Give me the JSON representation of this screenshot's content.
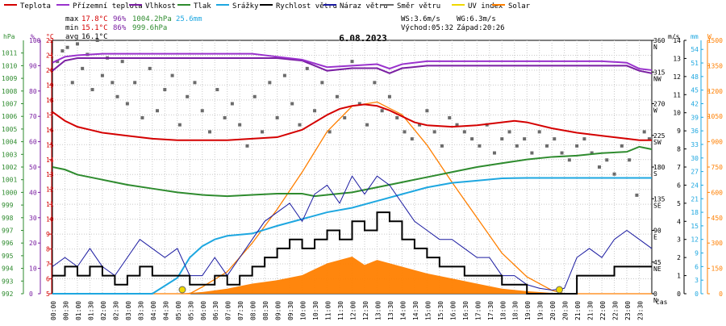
{
  "legend": [
    {
      "label": "Teplota",
      "color": "#d40000"
    },
    {
      "label": "Přízemní teplota",
      "color": "#9a32cd"
    },
    {
      "label": "Vlhkost",
      "color": "#7a1fa2"
    },
    {
      "label": "Tlak",
      "color": "#2e8b2e"
    },
    {
      "label": "Srážky",
      "color": "#1ea7e0"
    },
    {
      "label": "Rychlost větru",
      "color": "#000000"
    },
    {
      "label": "Náraz větru",
      "color": "#1a1aa0"
    },
    {
      "label": "Směr větru",
      "color": "#6b6b6b"
    },
    {
      "label": "UV index",
      "color": "#f0d800"
    },
    {
      "label": "Solar",
      "color": "#ff7f00"
    }
  ],
  "stats": {
    "max_label": "max",
    "max_temp": "17.8°C",
    "max_hum": "96%",
    "max_press": "1004.2hPa",
    "max_rain": "25.6mm",
    "min_label": "min",
    "min_temp": "15.1°C",
    "min_hum": "86%",
    "min_press": "999.6hPa",
    "avg_label": "avg",
    "avg_temp": "16.1°C"
  },
  "wind_info": {
    "ws": "WS:3.6m/s",
    "wg": "WG:6.3m/s",
    "sunrise": "Východ:05:32",
    "sunset": "Západ:20:26"
  },
  "title": "6.08.2023",
  "axis_titles": {
    "press": "hPa",
    "hum": "%",
    "temp": "°C",
    "wind": "m/s",
    "rain": "mm",
    "solar": "W",
    "time": "čas"
  },
  "chart_data": {
    "type": "line",
    "title": "6.08.2023",
    "x_ticks": [
      "00:00",
      "00:30",
      "01:00",
      "01:30",
      "02:00",
      "02:30",
      "03:00",
      "03:30",
      "04:00",
      "04:30",
      "05:00",
      "05:30",
      "06:00",
      "06:30",
      "07:00",
      "07:30",
      "08:00",
      "08:30",
      "09:00",
      "09:30",
      "10:00",
      "10:30",
      "11:00",
      "11:30",
      "12:00",
      "12:30",
      "13:00",
      "13:30",
      "14:00",
      "14:30",
      "15:00",
      "15:30",
      "16:00",
      "16:30",
      "17:00",
      "17:30",
      "18:00",
      "18:30",
      "19:00",
      "19:30",
      "20:00",
      "20:30",
      "21:00",
      "21:30",
      "22:00",
      "22:30",
      "23:00",
      "23:30"
    ],
    "axes": {
      "pressure": {
        "label": "hPa",
        "ylim": [
          992,
          1012
        ],
        "ticks": [
          "992",
          "993",
          "994",
          "995",
          "996",
          "997",
          "998",
          "999",
          "1000",
          "1001",
          "1002",
          "1003",
          "1004",
          "1005",
          "1006",
          "1007",
          "1008",
          "1009",
          "1010",
          "1011"
        ]
      },
      "humidity": {
        "label": "%",
        "ylim": [
          0,
          100
        ],
        "ticks": [
          "0",
          "10",
          "20",
          "30",
          "40",
          "50",
          "60",
          "70",
          "80",
          "90",
          "100"
        ]
      },
      "temperature": {
        "label": "°C",
        "ylim": [
          5,
          22
        ],
        "ticks": [
          "5",
          "6",
          "7",
          "8",
          "9",
          "10",
          "11",
          "12",
          "13",
          "14",
          "15",
          "16",
          "17",
          "18",
          "19",
          "20",
          "21",
          "22"
        ]
      },
      "wind_dir": {
        "ticks": [
          "0\nN",
          "45\nNE",
          "90\nE",
          "135\nSE",
          "180\nS",
          "225\nSW",
          "270\nW",
          "315\nNW",
          "360\nN"
        ],
        "ylim": [
          0,
          360
        ]
      },
      "wind_speed": {
        "label": "m/s",
        "ylim": [
          0,
          14
        ],
        "ticks": [
          "0",
          "1",
          "2",
          "3",
          "4",
          "5",
          "6",
          "7",
          "8",
          "9",
          "10",
          "11",
          "12",
          "13",
          "14"
        ]
      },
      "rain": {
        "label": "mm",
        "ylim": [
          0,
          56
        ],
        "ticks": [
          "0",
          "3",
          "6",
          "9",
          "12",
          "15",
          "18",
          "21",
          "24",
          "27",
          "30",
          "33",
          "36",
          "39",
          "42",
          "45",
          "48",
          "51",
          "54"
        ]
      },
      "solar": {
        "label": "W",
        "ylim": [
          0,
          1500
        ],
        "ticks": [
          "0",
          "150",
          "300",
          "450",
          "600",
          "750",
          "900",
          "1050",
          "1200",
          "1350",
          "1500"
        ]
      }
    },
    "series": [
      {
        "name": "Teplota",
        "axis": "temperature",
        "color": "#d40000",
        "x": [
          0,
          0.5,
          1,
          1.5,
          2,
          3,
          4,
          5,
          6,
          7,
          8,
          9,
          10,
          11,
          11.5,
          12,
          12.5,
          13,
          13.5,
          14,
          14.5,
          15,
          16,
          17,
          18,
          18.5,
          19,
          20,
          21,
          22,
          23,
          23.5,
          24
        ],
        "y": [
          17.2,
          16.6,
          16.2,
          16.0,
          15.8,
          15.6,
          15.4,
          15.3,
          15.3,
          15.3,
          15.4,
          15.5,
          16.0,
          17.0,
          17.4,
          17.6,
          17.7,
          17.6,
          17.3,
          16.9,
          16.5,
          16.3,
          16.2,
          16.3,
          16.5,
          16.6,
          16.5,
          16.1,
          15.8,
          15.6,
          15.4,
          15.3,
          15.3
        ]
      },
      {
        "name": "Přízemní teplota",
        "axis": "temperature",
        "color": "#9a32cd",
        "x": [
          0,
          0.5,
          1,
          2,
          3,
          4,
          5,
          6,
          7,
          8,
          9,
          10,
          11,
          12,
          13,
          13.5,
          14,
          15,
          16,
          17,
          18,
          19,
          20,
          21,
          22,
          23,
          23.5,
          24
        ],
        "y": [
          20.5,
          20.9,
          21.0,
          21.1,
          21.1,
          21.1,
          21.1,
          21.1,
          21.1,
          21.1,
          20.9,
          20.7,
          20.2,
          20.3,
          20.4,
          20.1,
          20.4,
          20.6,
          20.6,
          20.6,
          20.6,
          20.6,
          20.6,
          20.6,
          20.6,
          20.5,
          20.1,
          20.0
        ]
      },
      {
        "name": "Tlak",
        "axis": "pressure",
        "color": "#2e8b2e",
        "x": [
          0,
          0.5,
          1,
          1.5,
          2,
          3,
          4,
          5,
          6,
          7,
          8,
          9,
          10,
          10.5,
          11,
          12,
          13,
          14,
          15,
          16,
          17,
          18,
          19,
          20,
          21,
          22,
          23,
          23.5,
          24
        ],
        "y": [
          1002.0,
          1001.8,
          1001.4,
          1001.2,
          1001.0,
          1000.6,
          1000.3,
          1000.0,
          999.8,
          999.7,
          999.8,
          999.9,
          999.9,
          999.7,
          999.8,
          1000.0,
          1000.4,
          1000.8,
          1001.2,
          1001.6,
          1002.0,
          1002.3,
          1002.6,
          1002.8,
          1002.9,
          1003.1,
          1003.2,
          1003.6,
          1003.4
        ]
      },
      {
        "name": "Vlhkost",
        "axis": "humidity",
        "color": "#7a1fa2",
        "x": [
          0,
          0.5,
          1,
          2,
          3,
          4,
          5,
          6,
          7,
          8,
          9,
          10,
          11,
          12,
          13,
          13.5,
          14,
          15,
          16,
          17,
          18,
          19,
          20,
          21,
          22,
          23,
          23.5,
          24
        ],
        "y": [
          88,
          92,
          93,
          93,
          93,
          93,
          93,
          93,
          93,
          93,
          93,
          92,
          88,
          89,
          89,
          87,
          89,
          90,
          90,
          90,
          90,
          90,
          90,
          90,
          90,
          90,
          88,
          87
        ]
      },
      {
        "name": "Srážky",
        "axis": "rain",
        "color": "#1ea7e0",
        "x": [
          0,
          1,
          2,
          3,
          4,
          5,
          5.5,
          6,
          6.5,
          7,
          8,
          9,
          10,
          11,
          12,
          13,
          14,
          15,
          16,
          17,
          18,
          19,
          20,
          21,
          22,
          23,
          24
        ],
        "y": [
          0,
          0,
          0,
          0,
          0,
          3.5,
          8,
          10.5,
          12,
          12.8,
          13.3,
          15,
          16.5,
          18,
          19,
          20.5,
          22,
          23.5,
          24.5,
          25,
          25.5,
          25.6,
          25.6,
          25.6,
          25.6,
          25.6,
          25.6
        ]
      },
      {
        "name": "Rychlost větru",
        "axis": "wind_speed",
        "color": "#000000",
        "x": [
          0,
          0.5,
          1,
          1.5,
          2,
          2.5,
          3,
          3.5,
          4,
          4.5,
          5,
          5.5,
          6,
          6.5,
          7,
          7.5,
          8,
          8.5,
          9,
          9.5,
          10,
          10.5,
          11,
          11.5,
          12,
          12.5,
          13,
          13.5,
          14,
          14.5,
          15,
          15.5,
          16,
          16.5,
          17,
          17.5,
          18,
          18.5,
          19,
          19.5,
          20,
          20.5,
          21,
          21.5,
          22,
          22.5,
          23,
          23.5,
          24
        ],
        "y": [
          1.0,
          1.5,
          1.0,
          1.5,
          1.0,
          0.5,
          1.0,
          1.5,
          1.0,
          1.0,
          1.0,
          0.5,
          0.5,
          1.0,
          0.5,
          1.0,
          1.5,
          2.0,
          2.5,
          3.0,
          2.5,
          3.0,
          3.5,
          3.0,
          4.0,
          3.5,
          4.5,
          4.0,
          3.0,
          2.5,
          2.0,
          1.5,
          1.5,
          1.0,
          1.0,
          1.0,
          0.5,
          0.5,
          0.0,
          0.0,
          0.0,
          0.0,
          1.0,
          1.0,
          1.0,
          1.5,
          1.5,
          1.5,
          1.5
        ]
      },
      {
        "name": "Náraz větru",
        "axis": "wind_speed",
        "color": "#1a1aa0",
        "x": [
          0,
          0.5,
          1,
          1.5,
          2,
          2.5,
          3,
          3.5,
          4,
          4.5,
          5,
          5.5,
          6,
          6.5,
          7,
          7.5,
          8,
          8.5,
          9,
          9.5,
          10,
          10.5,
          11,
          11.5,
          12,
          12.5,
          13,
          13.5,
          14,
          14.5,
          15,
          15.5,
          16,
          16.5,
          17,
          17.5,
          18,
          18.5,
          19,
          19.5,
          20,
          20.5,
          21,
          21.5,
          22,
          22.5,
          23,
          23.5,
          24
        ],
        "y": [
          1.5,
          2.0,
          1.5,
          2.5,
          1.5,
          1.0,
          2.0,
          3.0,
          2.5,
          2.0,
          2.5,
          1.0,
          1.0,
          2.0,
          1.0,
          2.0,
          3.0,
          4.0,
          4.5,
          5.0,
          4.0,
          5.5,
          6.0,
          5.0,
          6.5,
          5.5,
          6.5,
          6.0,
          5.0,
          4.0,
          3.5,
          3.0,
          3.0,
          2.5,
          2.0,
          2.0,
          1.0,
          1.0,
          0.5,
          0.3,
          0.2,
          0.3,
          2.0,
          2.5,
          2.0,
          3.0,
          3.5,
          3.0,
          2.5
        ]
      },
      {
        "name": "Solar",
        "axis": "solar",
        "color": "#ff7f00",
        "x": [
          0,
          5,
          5.5,
          6,
          7,
          8,
          9,
          10,
          11,
          12,
          13,
          14,
          15,
          16,
          17,
          18,
          19,
          20,
          20.5,
          21,
          24
        ],
        "y": [
          0,
          0,
          0,
          40,
          130,
          300,
          500,
          720,
          960,
          1110,
          1135,
          1060,
          880,
          660,
          450,
          240,
          100,
          20,
          0,
          0,
          0
        ]
      },
      {
        "name": "Solar (measured)",
        "axis": "solar",
        "color": "#ff7f00",
        "x": [
          0,
          5,
          6,
          7,
          8,
          9,
          10,
          11,
          12,
          12.5,
          13,
          14,
          15,
          16,
          17,
          18,
          19,
          20,
          21,
          24
        ],
        "y": [
          0,
          0,
          10,
          30,
          60,
          80,
          110,
          180,
          220,
          170,
          200,
          160,
          120,
          90,
          60,
          30,
          15,
          5,
          0,
          0
        ]
      },
      {
        "name": "UV index",
        "axis": "wind_speed",
        "color": "#f0d800",
        "x": [
          5.2,
          20.3
        ],
        "y": [
          0.2,
          0.2
        ]
      }
    ],
    "wind_dir_points": {
      "axis": "wind_dir",
      "x": [
        0.2,
        0.4,
        0.6,
        0.8,
        1.0,
        1.2,
        1.4,
        1.6,
        1.8,
        2.0,
        2.2,
        2.4,
        2.6,
        2.8,
        3.0,
        3.3,
        3.6,
        3.9,
        4.2,
        4.5,
        4.8,
        5.1,
        5.4,
        5.7,
        6.0,
        6.3,
        6.6,
        6.9,
        7.2,
        7.5,
        7.8,
        8.1,
        8.4,
        8.7,
        9.0,
        9.3,
        9.6,
        9.9,
        10.2,
        10.5,
        10.8,
        11.1,
        11.4,
        11.7,
        12.0,
        12.3,
        12.6,
        12.9,
        13.2,
        13.5,
        13.8,
        14.1,
        14.4,
        14.7,
        15.0,
        15.3,
        15.6,
        15.9,
        16.2,
        16.5,
        16.8,
        17.1,
        17.4,
        17.7,
        18.0,
        18.3,
        18.6,
        18.9,
        19.2,
        19.5,
        19.8,
        20.1,
        20.4,
        20.7,
        21.0,
        21.3,
        21.6,
        21.9,
        22.2,
        22.5,
        22.8,
        23.1,
        23.4,
        23.7,
        23.9
      ],
      "y": [
        330,
        345,
        350,
        300,
        355,
        320,
        340,
        290,
        360,
        310,
        335,
        300,
        280,
        330,
        270,
        300,
        250,
        320,
        260,
        290,
        310,
        240,
        280,
        300,
        260,
        230,
        290,
        250,
        270,
        240,
        210,
        280,
        230,
        300,
        250,
        310,
        270,
        240,
        320,
        260,
        300,
        230,
        280,
        250,
        330,
        270,
        240,
        300,
        260,
        280,
        250,
        230,
        220,
        240,
        260,
        230,
        210,
        250,
        240,
        230,
        220,
        210,
        240,
        200,
        220,
        230,
        210,
        220,
        200,
        230,
        210,
        220,
        200,
        190,
        210,
        220,
        200,
        180,
        190,
        170,
        210,
        190,
        140,
        230,
        220
      ]
    }
  }
}
